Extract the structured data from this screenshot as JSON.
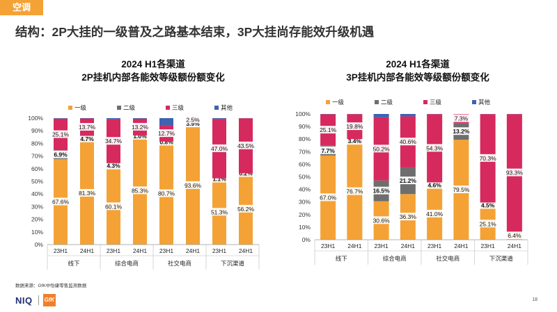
{
  "section_tag": "空调",
  "headline": "结构：2P大挂的一级普及之路基本结束，3P大挂尚存能效升级机遇",
  "colors": {
    "一级": "#f4a236",
    "二级": "#6e6e6e",
    "三级": "#d6295e",
    "其他": "#3f63b0",
    "tag": "#f4a236"
  },
  "charts": [
    {
      "title_line1": "2024 H1各渠道",
      "title_line2": "2P挂机内部各能效等级额份额变化",
      "chart_data": {
        "type": "bar",
        "stacked": true,
        "percent": true,
        "ylim": [
          0,
          100
        ],
        "yticks": [
          "0%",
          "10%",
          "20%",
          "30%",
          "40%",
          "50%",
          "60%",
          "70%",
          "80%",
          "90%",
          "100%"
        ],
        "legend": [
          "一级",
          "二级",
          "三级",
          "其他"
        ],
        "categories": [
          "23H1",
          "24H1",
          "23H1",
          "24H1",
          "23H1",
          "24H1",
          "23H1",
          "24H1"
        ],
        "groups": [
          "线下",
          "综合电商",
          "社交电商",
          "下沉渠道"
        ],
        "series": [
          {
            "name": "一级",
            "values": [
              67.6,
              81.3,
              60.1,
              85.3,
              80.7,
              93.6,
              51.3,
              56.2
            ],
            "labels": [
              "67.6%",
              "81.3%",
              "60.1%",
              "85.3%",
              "80.7%",
              "93.6%",
              "51.3%",
              "56.2%"
            ]
          },
          {
            "name": "二级",
            "values": [
              6.9,
              4.7,
              4.3,
              1.0,
              0.8,
              3.9,
              1.1,
              0.2
            ],
            "labels": [
              "6.9%",
              "4.7%",
              "4.3%",
              "1.0%",
              "0.8%",
              "3.9%",
              "1.1%",
              "0.2%"
            ]
          },
          {
            "name": "三级",
            "values": [
              25.1,
              13.7,
              34.7,
              13.2,
              12.7,
              2.5,
              47.0,
              43.5
            ],
            "labels": [
              "25.1%",
              "13.7%",
              "34.7%",
              "13.2%",
              "12.7%",
              "2.5%",
              "47.0%",
              "43.5%"
            ]
          },
          {
            "name": "其他",
            "values": [
              0.4,
              0.3,
              0.9,
              0.5,
              5.8,
              0.0,
              0.6,
              0.1
            ],
            "labels": [
              "",
              "",
              "",
              "",
              "",
              "",
              "",
              ""
            ]
          }
        ]
      }
    },
    {
      "title_line1": "2024 H1各渠道",
      "title_line2": "3P挂机内部各能效等级额份额变化",
      "chart_data": {
        "type": "bar",
        "stacked": true,
        "percent": true,
        "ylim": [
          0,
          100
        ],
        "yticks": [
          "0%",
          "10%",
          "20%",
          "30%",
          "40%",
          "50%",
          "60%",
          "70%",
          "80%",
          "90%",
          "100%"
        ],
        "legend": [
          "一级",
          "二级",
          "三级",
          "其他"
        ],
        "categories": [
          "23H1",
          "24H1",
          "23H1",
          "24H1",
          "23H1",
          "24H1",
          "23H1",
          "24H1"
        ],
        "groups": [
          "线下",
          "综合电商",
          "社交电商",
          "下沉渠道"
        ],
        "series": [
          {
            "name": "一级",
            "values": [
              67.0,
              76.7,
              30.6,
              36.3,
              41.0,
              79.5,
              25.1,
              6.4
            ],
            "labels": [
              "67.0%",
              "76.7%",
              "30.6%",
              "36.3%",
              "41.0%",
              "79.5%",
              "25.1%",
              "6.4%"
            ]
          },
          {
            "name": "二级",
            "values": [
              7.7,
              3.4,
              16.5,
              21.2,
              4.6,
              13.2,
              4.5,
              0.2
            ],
            "labels": [
              "7.7%",
              "3.4%",
              "16.5%",
              "21.2%",
              "4.6%",
              "13.2%",
              "4.5%",
              ""
            ]
          },
          {
            "name": "三级",
            "values": [
              25.1,
              19.8,
              50.2,
              40.6,
              54.3,
              7.3,
              70.3,
              93.3
            ],
            "labels": [
              "25.1%",
              "19.8%",
              "50.2%",
              "40.6%",
              "54.3%",
              "7.3%",
              "70.3%",
              "93.3%"
            ]
          },
          {
            "name": "其他",
            "values": [
              0.2,
              0.1,
              2.7,
              1.9,
              0.1,
              0.0,
              0.1,
              0.1
            ],
            "labels": [
              "",
              "",
              "",
              "",
              "",
              "",
              "",
              ""
            ]
          }
        ]
      }
    }
  ],
  "source": "数据来源：GfK中怡康零售监测数据",
  "logo_niq": "NIQ",
  "logo_gfk": "GfK",
  "page_number": "18"
}
